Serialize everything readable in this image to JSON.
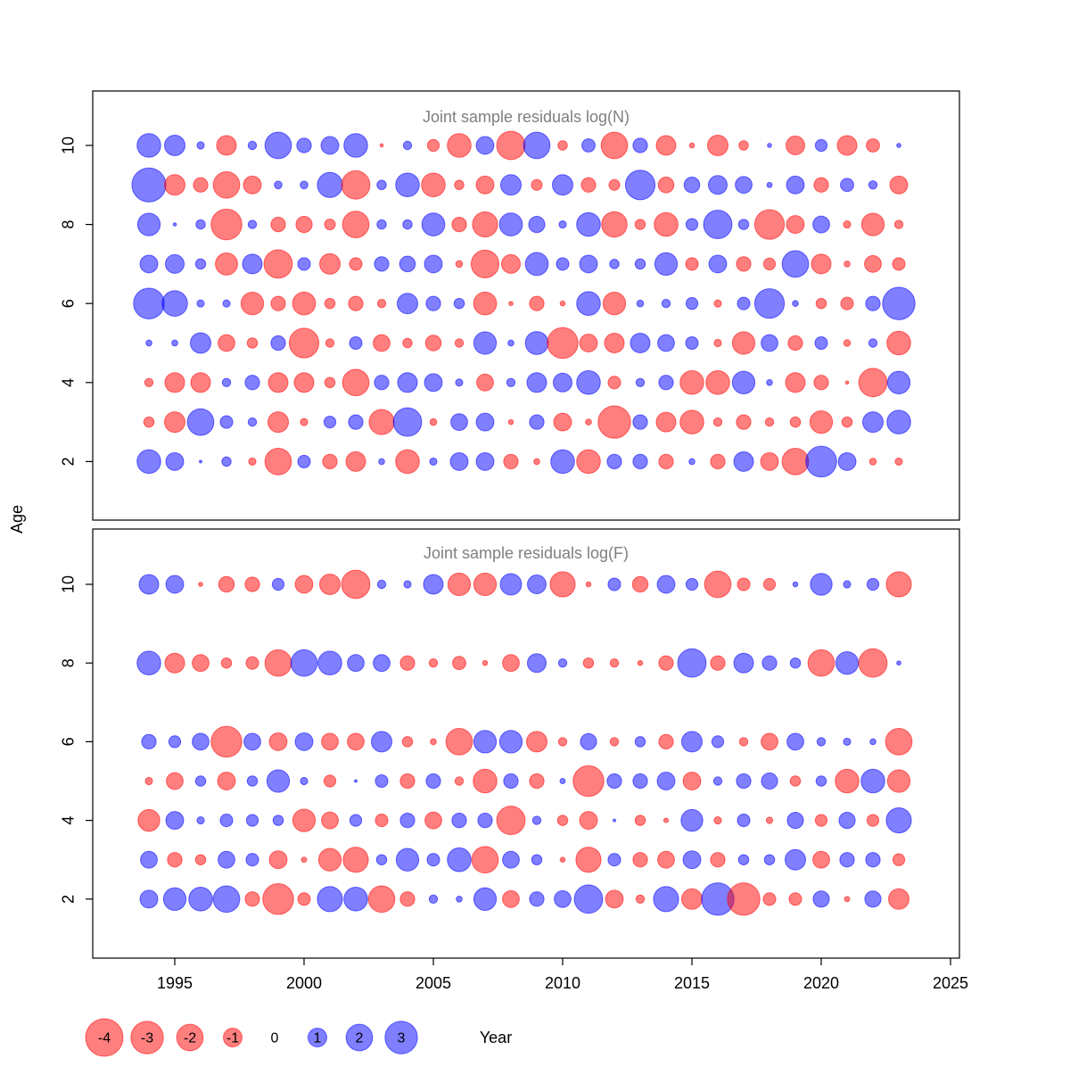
{
  "figure": {
    "ylabel": "Age",
    "xlabel": "Year",
    "colors": {
      "negative": "#FF0000",
      "positive": "#0000FF",
      "fill_opacity": 0.5,
      "stroke_opacity": 0.55,
      "title_gray": "#7F7F7F"
    }
  },
  "legend": {
    "values": [
      -4,
      -3,
      -2,
      -1,
      0,
      1,
      2,
      3
    ],
    "labels": [
      "-4",
      "-3",
      "-2",
      "-1",
      "0",
      "1",
      "2",
      "3"
    ]
  },
  "chart_data": [
    {
      "type": "bubble",
      "title": "Joint sample residuals log(N)",
      "xlabel": "Year",
      "ylabel": "Age",
      "x": [
        1994,
        1995,
        1996,
        1997,
        1998,
        1999,
        2000,
        2001,
        2002,
        2003,
        2004,
        2005,
        2006,
        2007,
        2008,
        2009,
        2010,
        2011,
        2012,
        2013,
        2014,
        2015,
        2016,
        2017,
        2018,
        2019,
        2020,
        2021,
        2022,
        2023
      ],
      "x_ticks": [
        1995,
        2000,
        2005,
        2010,
        2015,
        2020,
        2025
      ],
      "y_ticks": [
        2,
        4,
        6,
        8,
        10
      ],
      "ylim": [
        1,
        11
      ],
      "note": "circle radius proportional to sqrt(|residual|); red negative, blue positive",
      "series": [
        {
          "age": 10,
          "values": [
            1.6,
            1.2,
            0.15,
            -1.1,
            0.2,
            2.0,
            0.6,
            0.9,
            1.6,
            -0.03,
            0.2,
            -0.4,
            -1.6,
            0.9,
            -2.3,
            2.0,
            -0.25,
            0.5,
            -2.0,
            0.6,
            -1.1,
            -0.07,
            -1.2,
            -0.25,
            0.05,
            -1.0,
            0.4,
            -1.1,
            -0.5,
            0.05
          ]
        },
        {
          "age": 9,
          "values": [
            3.3,
            -1.2,
            -0.6,
            -2.0,
            -0.9,
            0.17,
            0.17,
            1.8,
            -2.3,
            0.25,
            1.6,
            -1.6,
            -0.25,
            -0.9,
            1.2,
            -0.33,
            1.2,
            -0.6,
            -0.33,
            2.5,
            -0.7,
            0.7,
            1.0,
            0.8,
            0.08,
            0.9,
            -0.6,
            0.5,
            0.2,
            -0.9
          ]
        },
        {
          "age": 8,
          "values": [
            1.45,
            0.03,
            0.25,
            -2.7,
            0.2,
            -0.6,
            -0.75,
            -0.33,
            -2.0,
            0.25,
            0.25,
            1.5,
            -0.6,
            -1.8,
            1.5,
            0.75,
            0.15,
            1.6,
            -1.85,
            -0.3,
            -1.6,
            0.4,
            2.3,
            0.3,
            -2.5,
            -0.9,
            0.8,
            -0.15,
            -1.45,
            -0.2
          ]
        },
        {
          "age": 7,
          "values": [
            0.9,
            1.0,
            0.3,
            -1.4,
            1.1,
            -2.3,
            0.45,
            -1.2,
            -0.45,
            0.6,
            0.7,
            0.9,
            -0.13,
            -2.2,
            -1.0,
            1.5,
            0.45,
            0.9,
            0.25,
            0.3,
            1.45,
            -0.45,
            0.9,
            -0.6,
            -0.4,
            2.0,
            -1.1,
            -0.1,
            -0.8,
            -0.45
          ]
        },
        {
          "age": 6,
          "values": [
            2.7,
            1.85,
            0.15,
            0.15,
            -1.45,
            -0.6,
            -1.5,
            -0.3,
            -0.6,
            -0.2,
            1.2,
            0.6,
            0.3,
            -1.5,
            -0.05,
            -0.6,
            -0.07,
            1.6,
            -1.45,
            0.13,
            0.2,
            0.4,
            -0.15,
            0.45,
            2.5,
            0.1,
            -0.3,
            -0.45,
            0.6,
            3.0
          ]
        },
        {
          "age": 5,
          "values": [
            0.1,
            0.1,
            1.2,
            -0.8,
            -0.3,
            0.6,
            -2.5,
            -0.2,
            0.45,
            -0.8,
            -0.25,
            -0.7,
            -0.2,
            1.45,
            0.1,
            1.5,
            -2.7,
            -0.9,
            -1.1,
            1.1,
            0.8,
            0.45,
            -0.15,
            -1.45,
            0.8,
            -0.6,
            0.45,
            -0.13,
            0.2,
            -1.6
          ]
        },
        {
          "age": 4,
          "values": [
            -0.2,
            -1.1,
            -1.1,
            0.2,
            0.6,
            -1.1,
            -1.1,
            -0.3,
            -2.0,
            0.6,
            1.1,
            0.9,
            0.15,
            -0.8,
            0.2,
            1.1,
            1.0,
            1.6,
            -0.45,
            0.2,
            0.6,
            -1.6,
            -1.6,
            1.45,
            0.1,
            -1.1,
            -0.6,
            -0.03,
            -2.3,
            1.45
          ]
        },
        {
          "age": 3,
          "values": [
            -0.3,
            -1.2,
            2.0,
            0.45,
            0.2,
            -1.2,
            -0.15,
            0.4,
            0.6,
            -1.8,
            2.3,
            -0.13,
            0.8,
            0.9,
            -0.07,
            0.6,
            -0.9,
            -0.1,
            -3.0,
            0.6,
            -1.1,
            -1.6,
            -0.2,
            -0.6,
            -0.2,
            -0.3,
            -1.45,
            -0.3,
            1.2,
            1.6
          ]
        },
        {
          "age": 2,
          "values": [
            1.6,
            0.9,
            0.02,
            0.25,
            -0.15,
            -2.0,
            0.45,
            -0.6,
            -1.1,
            0.1,
            -1.6,
            0.15,
            0.9,
            0.9,
            -0.6,
            -0.1,
            1.6,
            -1.6,
            0.6,
            0.6,
            -0.6,
            0.1,
            -0.6,
            1.1,
            -0.9,
            -2.0,
            2.7,
            0.9,
            -0.13,
            -0.15
          ]
        }
      ]
    },
    {
      "type": "bubble",
      "title": "Joint sample residuals log(F)",
      "xlabel": "Year",
      "ylabel": "Age",
      "x": [
        1994,
        1995,
        1996,
        1997,
        1998,
        1999,
        2000,
        2001,
        2002,
        2003,
        2004,
        2005,
        2006,
        2007,
        2008,
        2009,
        2010,
        2011,
        2012,
        2013,
        2014,
        2015,
        2016,
        2017,
        2018,
        2019,
        2020,
        2021,
        2022,
        2023
      ],
      "x_ticks": [
        1995,
        2000,
        2005,
        2010,
        2015,
        2020,
        2025
      ],
      "y_ticks": [
        2,
        4,
        6,
        8,
        10
      ],
      "ylim": [
        1,
        11
      ],
      "note": "ages 7 and 9 have no residuals in this panel",
      "series": [
        {
          "age": 10,
          "values": [
            1.1,
            0.9,
            -0.05,
            -0.7,
            -0.6,
            0.4,
            -0.9,
            -1.2,
            -2.3,
            0.2,
            0.15,
            1.1,
            -1.45,
            -1.45,
            1.3,
            1.0,
            -1.8,
            -0.07,
            0.45,
            -0.7,
            0.9,
            0.4,
            -2.0,
            -0.45,
            -0.4,
            0.07,
            1.35,
            0.15,
            0.4,
            -1.8
          ]
        },
        {
          "age": 8,
          "values": [
            1.6,
            -1.1,
            -0.8,
            -0.3,
            -0.45,
            -2.0,
            2.0,
            1.6,
            0.8,
            0.8,
            -0.6,
            -0.2,
            -0.5,
            -0.07,
            -0.8,
            1.0,
            0.2,
            -0.3,
            -0.2,
            -0.07,
            -0.6,
            2.3,
            -0.6,
            1.1,
            0.6,
            0.3,
            -2.0,
            1.45,
            -2.3,
            0.05
          ]
        },
        {
          "age": 6,
          "values": [
            0.6,
            0.4,
            0.8,
            -2.7,
            0.8,
            -0.9,
            0.9,
            -0.8,
            -0.8,
            1.2,
            -0.3,
            -0.1,
            -2.0,
            1.45,
            1.45,
            -1.2,
            -0.2,
            0.75,
            -0.2,
            0.3,
            -0.6,
            1.2,
            0.4,
            -0.2,
            -0.8,
            0.8,
            0.2,
            0.15,
            0.1,
            -2.0
          ]
        },
        {
          "age": 5,
          "values": [
            -0.15,
            -0.8,
            0.3,
            -0.9,
            0.3,
            1.45,
            0.15,
            -0.4,
            0.02,
            0.45,
            -0.6,
            0.6,
            -0.2,
            -1.6,
            0.6,
            -0.6,
            0.08,
            -2.7,
            0.6,
            0.6,
            0.9,
            -0.9,
            0.2,
            0.6,
            0.75,
            -0.3,
            0.3,
            -1.6,
            1.6,
            -1.45
          ]
        },
        {
          "age": 4,
          "values": [
            -1.35,
            0.9,
            0.15,
            0.45,
            0.4,
            0.3,
            -1.45,
            -0.8,
            0.4,
            -0.45,
            0.6,
            -0.8,
            0.6,
            0.6,
            -2.3,
            0.2,
            -0.3,
            -0.9,
            0.02,
            -0.3,
            -0.06,
            1.35,
            -0.15,
            0.45,
            -0.12,
            0.75,
            -0.4,
            0.75,
            -0.4,
            1.8
          ]
        },
        {
          "age": 3,
          "values": [
            0.8,
            -0.6,
            -0.3,
            0.8,
            0.45,
            -0.9,
            -0.08,
            -1.45,
            -1.8,
            0.3,
            1.45,
            0.45,
            1.6,
            -2.0,
            0.8,
            0.3,
            -0.07,
            -1.8,
            0.45,
            -0.6,
            -0.8,
            0.9,
            -0.6,
            0.3,
            0.3,
            1.2,
            -0.8,
            0.6,
            0.6,
            -0.4
          ]
        },
        {
          "age": 2,
          "values": [
            0.9,
            1.45,
            1.6,
            2.0,
            -0.6,
            -2.7,
            -0.45,
            1.8,
            1.6,
            -2.0,
            -0.6,
            0.2,
            0.1,
            1.45,
            -0.8,
            0.6,
            0.8,
            2.3,
            -0.9,
            -0.2,
            1.8,
            -1.2,
            3.0,
            -3.0,
            -0.45,
            -0.45,
            0.75,
            -0.08,
            0.75,
            -1.2
          ]
        }
      ]
    }
  ]
}
